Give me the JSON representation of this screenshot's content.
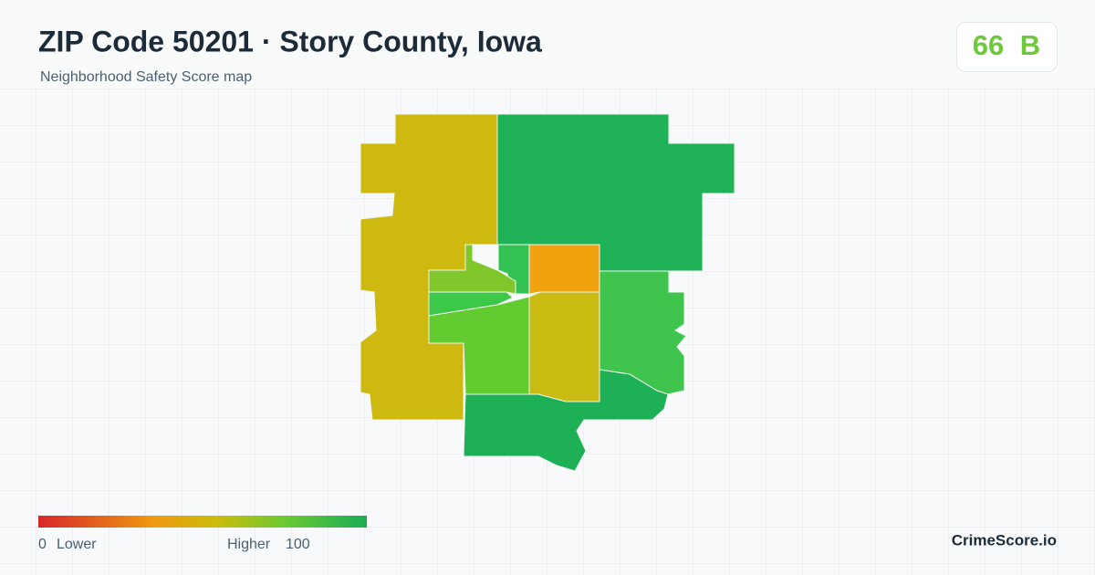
{
  "header": {
    "title": "ZIP Code 50201 · Story County, Iowa",
    "subtitle": "Neighborhood Safety Score map"
  },
  "score": {
    "value": "66",
    "grade": "B"
  },
  "legend": {
    "min": "0",
    "min_label": "Lower",
    "max_label": "Higher",
    "max": "100"
  },
  "brand": "CrimeScore.io"
}
